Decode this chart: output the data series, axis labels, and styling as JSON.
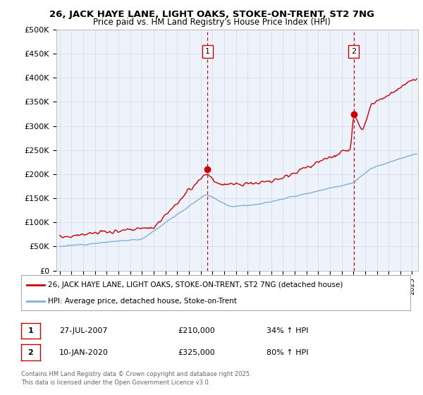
{
  "title_line1": "26, JACK HAYE LANE, LIGHT OAKS, STOKE-ON-TRENT, ST2 7NG",
  "title_line2": "Price paid vs. HM Land Registry's House Price Index (HPI)",
  "ylim": [
    0,
    500000
  ],
  "yticks": [
    0,
    50000,
    100000,
    150000,
    200000,
    250000,
    300000,
    350000,
    400000,
    450000,
    500000
  ],
  "ytick_labels": [
    "£0",
    "£50K",
    "£100K",
    "£150K",
    "£200K",
    "£250K",
    "£300K",
    "£350K",
    "£400K",
    "£450K",
    "£500K"
  ],
  "xlim_start": 1994.7,
  "xlim_end": 2025.5,
  "sale1_x": 2007.57,
  "sale1_y": 210000,
  "sale1_label": "1",
  "sale2_x": 2020.03,
  "sale2_y": 325000,
  "sale2_label": "2",
  "red_line_color": "#cc0000",
  "blue_line_color": "#7fb0d8",
  "vline_color": "#cc0000",
  "grid_color": "#d0d8e8",
  "background_color": "#eef2fa",
  "legend_label_red": "26, JACK HAYE LANE, LIGHT OAKS, STOKE-ON-TRENT, ST2 7NG (detached house)",
  "legend_label_blue": "HPI: Average price, detached house, Stoke-on-Trent",
  "footnote_line1": "Contains HM Land Registry data © Crown copyright and database right 2025.",
  "footnote_line2": "This data is licensed under the Open Government Licence v3.0.",
  "table_row1": [
    "1",
    "27-JUL-2007",
    "£210,000",
    "34% ↑ HPI"
  ],
  "table_row2": [
    "2",
    "10-JAN-2020",
    "£325,000",
    "80% ↑ HPI"
  ]
}
